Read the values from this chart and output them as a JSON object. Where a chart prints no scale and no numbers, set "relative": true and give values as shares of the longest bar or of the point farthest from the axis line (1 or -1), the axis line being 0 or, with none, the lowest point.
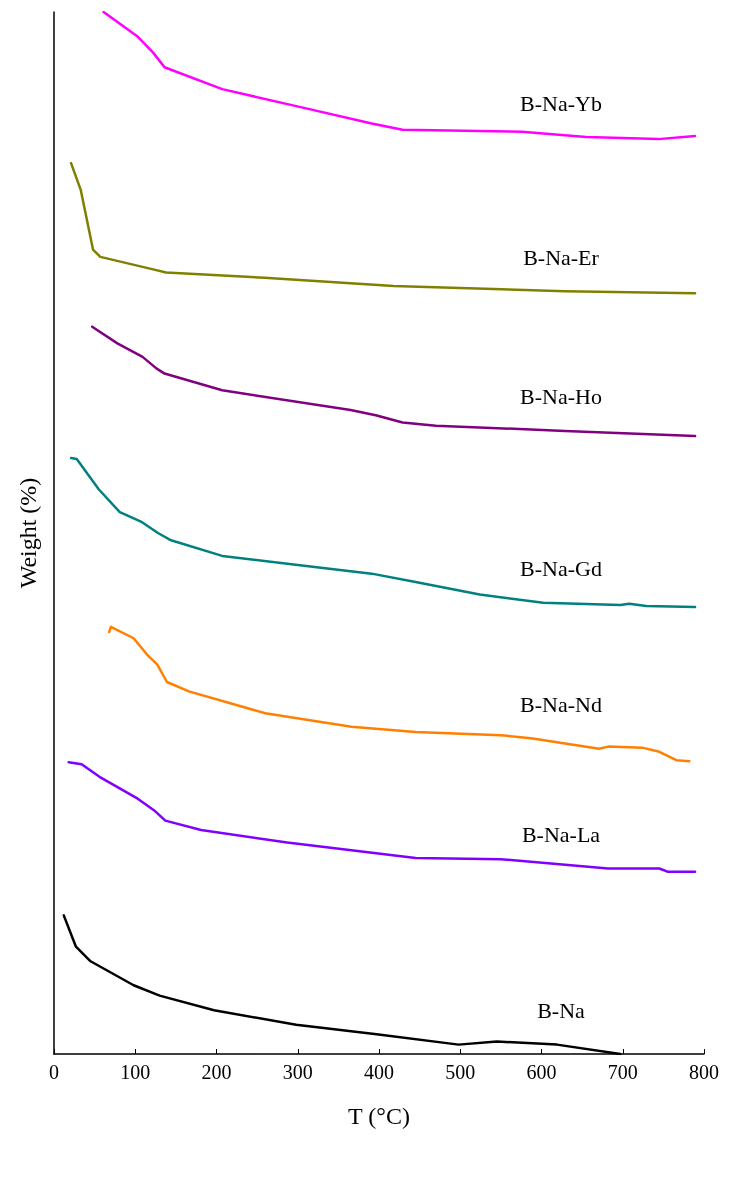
{
  "chart_data": {
    "type": "line",
    "xlabel": "T (°C)",
    "ylabel": "Weight (%)",
    "relative": true,
    "xlim": [
      0,
      800
    ],
    "xticks": [
      0,
      100,
      200,
      300,
      400,
      500,
      600,
      700,
      800
    ],
    "grid": false,
    "legend": false,
    "marker": "none",
    "line_style": "solid",
    "series": [
      {
        "name": "B-Na-Yb",
        "color": "#ff00ff",
        "x": [
          61,
          102,
          122,
          136,
          207,
          313,
          391,
          429,
          576,
          655,
          744,
          789
        ],
        "values": [
          1.0,
          0.977,
          0.961,
          0.947,
          0.926,
          0.907,
          0.893,
          0.887,
          0.885,
          0.88,
          0.878,
          0.881
        ]
      },
      {
        "name": "B-Na-Er",
        "color": "#808000",
        "x": [
          21,
          33,
          48,
          57,
          122,
          138,
          259,
          418,
          629,
          789
        ],
        "values": [
          0.855,
          0.829,
          0.772,
          0.765,
          0.753,
          0.75,
          0.745,
          0.737,
          0.732,
          0.73
        ]
      },
      {
        "name": "B-Na-Ho",
        "color": "#800080",
        "x": [
          47,
          78,
          109,
          126,
          136,
          207,
          365,
          396,
          429,
          470,
          629,
          789
        ],
        "values": [
          0.698,
          0.682,
          0.669,
          0.658,
          0.653,
          0.637,
          0.618,
          0.613,
          0.606,
          0.603,
          0.598,
          0.593
        ]
      },
      {
        "name": "B-Na-Gd",
        "color": "#008080",
        "x": [
          21,
          28,
          55,
          81,
          107,
          128,
          144,
          207,
          313,
          391,
          445,
          524,
          602,
          697,
          708,
          729,
          789
        ],
        "values": [
          0.572,
          0.571,
          0.542,
          0.52,
          0.511,
          0.5,
          0.493,
          0.478,
          0.468,
          0.461,
          0.453,
          0.441,
          0.433,
          0.431,
          0.432,
          0.43,
          0.429
        ]
      },
      {
        "name": "B-Na-Nd",
        "color": "#ff8000",
        "x": [
          68,
          70,
          98,
          116,
          127,
          139,
          166,
          260,
          366,
          445,
          550,
          587,
          671,
          682,
          724,
          745,
          766,
          782
        ],
        "values": [
          0.405,
          0.41,
          0.399,
          0.382,
          0.374,
          0.357,
          0.348,
          0.327,
          0.314,
          0.309,
          0.306,
          0.303,
          0.293,
          0.295,
          0.294,
          0.29,
          0.282,
          0.281
        ]
      },
      {
        "name": "B-Na-La",
        "color": "#8000ff",
        "x": [
          18,
          34,
          56,
          76,
          103,
          123,
          137,
          181,
          287,
          445,
          550,
          682,
          745,
          755,
          771,
          789
        ],
        "values": [
          0.28,
          0.278,
          0.266,
          0.257,
          0.245,
          0.234,
          0.224,
          0.215,
          0.203,
          0.188,
          0.187,
          0.178,
          0.178,
          0.175,
          0.175,
          0.175
        ]
      },
      {
        "name": "B-Na",
        "color": "#000000",
        "x": [
          12,
          27,
          45,
          98,
          130,
          197,
          298,
          397,
          498,
          545,
          619,
          697
        ],
        "values": [
          0.133,
          0.103,
          0.089,
          0.066,
          0.056,
          0.042,
          0.028,
          0.019,
          0.009,
          0.012,
          0.009,
          0
        ]
      }
    ]
  }
}
